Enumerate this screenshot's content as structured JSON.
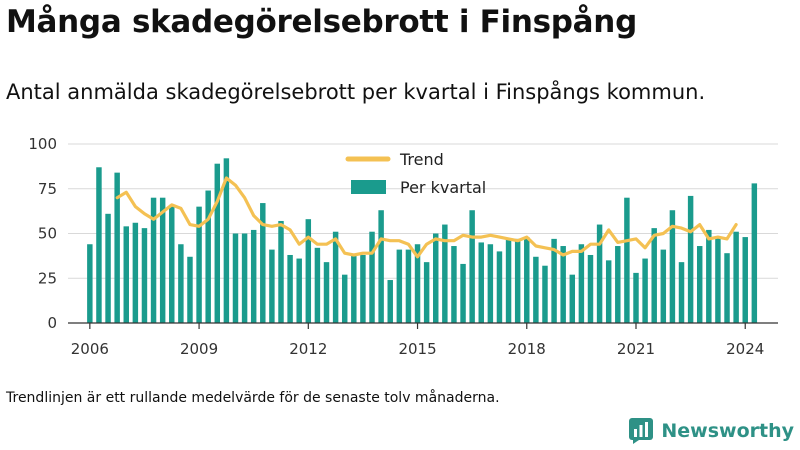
{
  "page": {
    "title": "Många skadegörelsebrott i Finspång",
    "subtitle": "Antal anmälda skadegörelsebrott per kvartal i Finspångs kommun.",
    "footnote": "Trendlinjen är ett rullande medelvärde för de senaste tolv månaderna.",
    "brand": "Newsworthy",
    "brand_icon": "bar-chart-logo-icon"
  },
  "colors": {
    "bars": "#1a9b8d",
    "trend": "#f4c153",
    "grid": "#d9d9d9",
    "axis": "#333333",
    "brand": "#2e9186"
  },
  "chart_data": {
    "type": "bar",
    "title": "Många skadegörelsebrott i Finspång",
    "subtitle": "Antal anmälda skadegörelsebrott per kvartal i Finspångs kommun.",
    "xlabel": "",
    "ylabel": "",
    "xlim": [
      2005.4,
      2024.9
    ],
    "ylim": [
      0,
      100
    ],
    "y_ticks": [
      0,
      25,
      50,
      75,
      100
    ],
    "x_ticks": [
      "2006",
      "2009",
      "2012",
      "2015",
      "2018",
      "2021",
      "2024"
    ],
    "grid": true,
    "legend_position": "top-center",
    "x_start": 2006.0,
    "x_step": 0.25,
    "series": [
      {
        "name": "Per kvartal",
        "kind": "bar",
        "values": [
          44,
          87,
          61,
          84,
          54,
          56,
          53,
          70,
          70,
          66,
          44,
          37,
          65,
          74,
          89,
          92,
          50,
          50,
          52,
          67,
          41,
          57,
          38,
          36,
          58,
          42,
          34,
          51,
          27,
          38,
          38,
          51,
          63,
          24,
          41,
          41,
          44,
          34,
          50,
          55,
          43,
          33,
          63,
          45,
          44,
          40,
          47,
          47,
          48,
          37,
          32,
          47,
          43,
          27,
          44,
          38,
          55,
          35,
          43,
          70,
          28,
          36,
          53,
          41,
          63,
          34,
          71,
          43,
          52,
          48,
          39,
          51,
          48,
          78
        ]
      },
      {
        "name": "Trend",
        "kind": "line",
        "x_start": 2006.75,
        "values": [
          70,
          73,
          65,
          61,
          58,
          62,
          66,
          64,
          55,
          54,
          58,
          68,
          81,
          77,
          70,
          60,
          55,
          54,
          55,
          52,
          44,
          48,
          44,
          44,
          47,
          39,
          38,
          39,
          39,
          47,
          46,
          46,
          44,
          37,
          44,
          47,
          46,
          46,
          49,
          48,
          48,
          49,
          48,
          47,
          46,
          48,
          43,
          42,
          41,
          38,
          40,
          40,
          44,
          44,
          52,
          45,
          46,
          47,
          42,
          49,
          50,
          54,
          53,
          51,
          55,
          47,
          48,
          47,
          55
        ]
      }
    ]
  }
}
